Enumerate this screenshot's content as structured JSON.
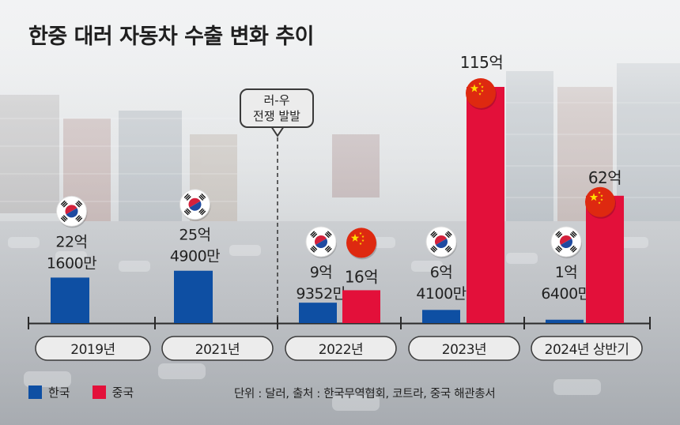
{
  "title": "한중 대러 자동차 수출 변화 추이",
  "event_annotation": {
    "line1": "러-우",
    "line2": "전쟁 발발"
  },
  "legend": [
    {
      "label": "한국",
      "color": "#0e4fa3"
    },
    {
      "label": "중국",
      "color": "#e3103a"
    }
  ],
  "source": "단위 : 달러, 출처 : 한국무역협회, 코트라, 중국 해관총서",
  "chart_data": {
    "type": "bar",
    "categories": [
      "2019년",
      "2021년",
      "2022년",
      "2023년",
      "2024년 상반기"
    ],
    "series": [
      {
        "name": "한국",
        "color": "#0e4fa3",
        "values": [
          22.16,
          25.49,
          9.9352,
          6.41,
          1.64
        ],
        "labels": [
          [
            "22억",
            "1600만"
          ],
          [
            "25억",
            "4900만"
          ],
          [
            "9억",
            "9352만"
          ],
          [
            "6억",
            "4100만"
          ],
          [
            "1억",
            "6400만"
          ]
        ]
      },
      {
        "name": "중국",
        "color": "#e3103a",
        "values": [
          null,
          null,
          16,
          115,
          62
        ],
        "labels": [
          null,
          null,
          [
            "16억"
          ],
          [
            "115억"
          ],
          [
            "62억"
          ]
        ]
      }
    ],
    "ylim": [
      0,
      115
    ],
    "icons": {
      "korea": "korea-flag-icon",
      "china": "china-flag-icon"
    }
  }
}
